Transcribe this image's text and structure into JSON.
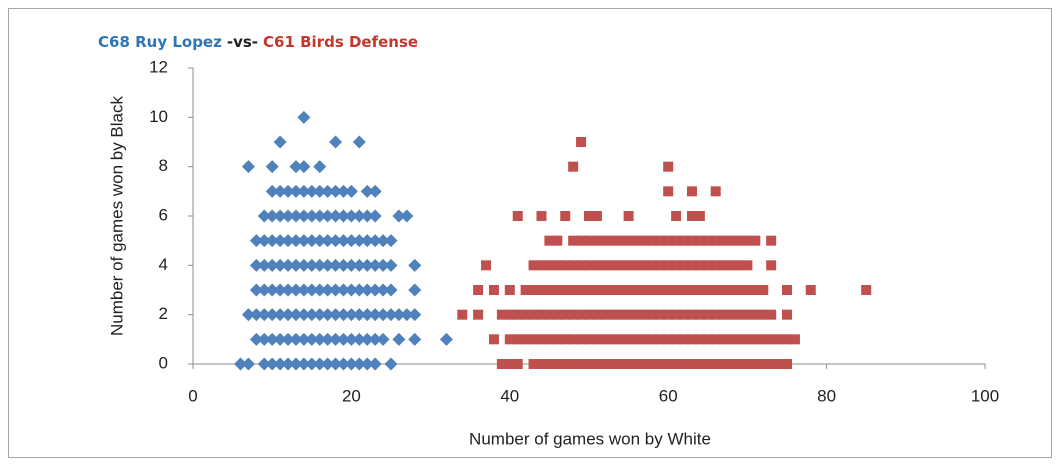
{
  "chart_data": {
    "type": "scatter",
    "title_parts": [
      {
        "text": "C68 Ruy Lopez",
        "color": "#2e75b6"
      },
      {
        "text": "-vs-",
        "color": "#222222"
      },
      {
        "text": "C61 Birds Defense",
        "color": "#c0392b"
      }
    ],
    "x_label": "Number of games won by White",
    "y_label": "Number of games won by Black",
    "xlim": [
      0,
      100
    ],
    "xticks": [
      0,
      20,
      40,
      60,
      80,
      100
    ],
    "ylim": [
      0,
      12
    ],
    "yticks": [
      0,
      2,
      4,
      6,
      8,
      10,
      12
    ],
    "grid": false,
    "series": [
      {
        "name": "C68 Ruy Lopez",
        "color": "#4f81bd",
        "marker": "diamond",
        "x": [
          6,
          7,
          9,
          10,
          11,
          12,
          13,
          14,
          15,
          16,
          17,
          18,
          19,
          20,
          21,
          22,
          23,
          25,
          8,
          9,
          10,
          11,
          12,
          13,
          14,
          15,
          16,
          17,
          18,
          19,
          20,
          21,
          22,
          23,
          24,
          26,
          28,
          32,
          7,
          8,
          9,
          10,
          11,
          12,
          13,
          14,
          15,
          16,
          17,
          18,
          19,
          20,
          21,
          22,
          23,
          24,
          25,
          26,
          27,
          28,
          8,
          9,
          10,
          11,
          12,
          13,
          14,
          15,
          16,
          17,
          18,
          19,
          20,
          21,
          22,
          23,
          24,
          25,
          28,
          8,
          9,
          10,
          11,
          12,
          13,
          14,
          15,
          16,
          17,
          18,
          19,
          20,
          21,
          22,
          23,
          24,
          25,
          28,
          8,
          9,
          10,
          11,
          12,
          13,
          14,
          15,
          16,
          17,
          18,
          19,
          20,
          21,
          22,
          23,
          24,
          25,
          9,
          10,
          11,
          12,
          13,
          14,
          15,
          16,
          17,
          18,
          19,
          20,
          21,
          22,
          23,
          26,
          27,
          10,
          11,
          12,
          13,
          14,
          15,
          16,
          17,
          18,
          19,
          20,
          22,
          23,
          7,
          10,
          13,
          14,
          16,
          11,
          18,
          21,
          14
        ],
        "values": [
          0,
          0,
          0,
          0,
          0,
          0,
          0,
          0,
          0,
          0,
          0,
          0,
          0,
          0,
          0,
          0,
          0,
          0,
          1,
          1,
          1,
          1,
          1,
          1,
          1,
          1,
          1,
          1,
          1,
          1,
          1,
          1,
          1,
          1,
          1,
          1,
          1,
          1,
          2,
          2,
          2,
          2,
          2,
          2,
          2,
          2,
          2,
          2,
          2,
          2,
          2,
          2,
          2,
          2,
          2,
          2,
          2,
          2,
          2,
          2,
          3,
          3,
          3,
          3,
          3,
          3,
          3,
          3,
          3,
          3,
          3,
          3,
          3,
          3,
          3,
          3,
          3,
          3,
          3,
          4,
          4,
          4,
          4,
          4,
          4,
          4,
          4,
          4,
          4,
          4,
          4,
          4,
          4,
          4,
          4,
          4,
          4,
          4,
          5,
          5,
          5,
          5,
          5,
          5,
          5,
          5,
          5,
          5,
          5,
          5,
          5,
          5,
          5,
          5,
          5,
          5,
          6,
          6,
          6,
          6,
          6,
          6,
          6,
          6,
          6,
          6,
          6,
          6,
          6,
          6,
          6,
          6,
          6,
          7,
          7,
          7,
          7,
          7,
          7,
          7,
          7,
          7,
          7,
          7,
          7,
          7,
          8,
          8,
          8,
          8,
          8,
          9,
          9,
          9,
          10
        ]
      },
      {
        "name": "C61 Birds Defense",
        "color": "#c0504d",
        "marker": "square",
        "x": [
          39,
          40,
          41,
          43,
          44,
          45,
          46,
          47,
          48,
          49,
          50,
          51,
          52,
          53,
          54,
          55,
          56,
          57,
          58,
          59,
          60,
          61,
          62,
          63,
          64,
          65,
          66,
          67,
          68,
          69,
          70,
          71,
          72,
          73,
          74,
          75,
          38,
          40,
          41,
          42,
          43,
          44,
          45,
          46,
          47,
          48,
          49,
          50,
          51,
          52,
          53,
          54,
          55,
          56,
          57,
          58,
          59,
          60,
          61,
          62,
          63,
          64,
          65,
          66,
          67,
          68,
          69,
          70,
          71,
          72,
          73,
          74,
          75,
          76,
          34,
          36,
          39,
          40,
          41,
          42,
          43,
          44,
          45,
          46,
          47,
          48,
          49,
          50,
          51,
          52,
          53,
          54,
          55,
          56,
          57,
          58,
          59,
          60,
          61,
          62,
          63,
          64,
          65,
          66,
          67,
          68,
          69,
          70,
          71,
          72,
          73,
          75,
          36,
          38,
          40,
          42,
          43,
          44,
          45,
          46,
          47,
          48,
          49,
          50,
          51,
          52,
          53,
          54,
          55,
          56,
          57,
          58,
          59,
          60,
          61,
          62,
          63,
          64,
          65,
          66,
          67,
          68,
          69,
          70,
          71,
          72,
          75,
          78,
          85,
          37,
          43,
          44,
          45,
          46,
          47,
          48,
          49,
          50,
          51,
          52,
          53,
          54,
          55,
          56,
          57,
          58,
          59,
          60,
          61,
          62,
          63,
          64,
          65,
          66,
          67,
          68,
          69,
          70,
          73,
          45,
          46,
          48,
          49,
          50,
          51,
          52,
          53,
          54,
          55,
          56,
          57,
          58,
          59,
          60,
          61,
          62,
          63,
          64,
          65,
          66,
          67,
          68,
          69,
          70,
          71,
          73,
          41,
          44,
          47,
          50,
          51,
          55,
          61,
          63,
          64,
          60,
          63,
          66,
          48,
          60,
          49
        ],
        "values": [
          0,
          0,
          0,
          0,
          0,
          0,
          0,
          0,
          0,
          0,
          0,
          0,
          0,
          0,
          0,
          0,
          0,
          0,
          0,
          0,
          0,
          0,
          0,
          0,
          0,
          0,
          0,
          0,
          0,
          0,
          0,
          0,
          0,
          0,
          0,
          0,
          1,
          1,
          1,
          1,
          1,
          1,
          1,
          1,
          1,
          1,
          1,
          1,
          1,
          1,
          1,
          1,
          1,
          1,
          1,
          1,
          1,
          1,
          1,
          1,
          1,
          1,
          1,
          1,
          1,
          1,
          1,
          1,
          1,
          1,
          1,
          1,
          1,
          1,
          2,
          2,
          2,
          2,
          2,
          2,
          2,
          2,
          2,
          2,
          2,
          2,
          2,
          2,
          2,
          2,
          2,
          2,
          2,
          2,
          2,
          2,
          2,
          2,
          2,
          2,
          2,
          2,
          2,
          2,
          2,
          2,
          2,
          2,
          2,
          2,
          2,
          2,
          3,
          3,
          3,
          3,
          3,
          3,
          3,
          3,
          3,
          3,
          3,
          3,
          3,
          3,
          3,
          3,
          3,
          3,
          3,
          3,
          3,
          3,
          3,
          3,
          3,
          3,
          3,
          3,
          3,
          3,
          3,
          3,
          3,
          3,
          3,
          3,
          3,
          4,
          4,
          4,
          4,
          4,
          4,
          4,
          4,
          4,
          4,
          4,
          4,
          4,
          4,
          4,
          4,
          4,
          4,
          4,
          4,
          4,
          4,
          4,
          4,
          4,
          4,
          4,
          4,
          4,
          4,
          5,
          5,
          5,
          5,
          5,
          5,
          5,
          5,
          5,
          5,
          5,
          5,
          5,
          5,
          5,
          5,
          5,
          5,
          5,
          5,
          5,
          5,
          5,
          5,
          5,
          5,
          5,
          6,
          6,
          6,
          6,
          6,
          6,
          6,
          6,
          6,
          7,
          7,
          7,
          8,
          8,
          9
        ]
      }
    ]
  }
}
